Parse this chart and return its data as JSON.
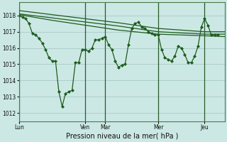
{
  "title": "Pression niveau de la mer( hPa )",
  "bg_color": "#cce8e4",
  "grid_color": "#aacfcb",
  "line_color": "#1e5c1e",
  "ylim": [
    1011.5,
    1018.8
  ],
  "yticks": [
    1012,
    1013,
    1014,
    1015,
    1016,
    1017,
    1018
  ],
  "xtick_labels": [
    "Lun",
    "Ven",
    "Mar",
    "Mer",
    "Jeu"
  ],
  "xtick_positions": [
    0,
    10,
    13,
    21,
    28
  ],
  "vlines": [
    0,
    10,
    13,
    21,
    28
  ],
  "xlim": [
    0,
    31
  ],
  "series1_x": [
    0,
    0.5,
    1,
    1.5,
    2,
    2.5,
    3,
    3.5,
    4,
    4.5,
    5,
    5.5,
    6,
    6.5,
    7,
    7.5,
    8,
    8.5,
    9,
    9.5,
    10,
    10.5,
    11,
    11.5,
    12,
    12.5,
    13,
    13.5,
    14,
    14.5,
    15,
    15.5,
    16,
    16.5,
    17,
    17.5,
    18,
    18.5,
    19,
    19.5,
    20,
    20.5,
    21,
    21.5,
    22,
    22.5,
    23,
    23.5,
    24,
    24.5,
    25,
    25.5,
    26,
    26.5,
    27,
    27.5,
    28,
    28.5,
    29,
    29.5,
    30
  ],
  "series1_y": [
    1018.0,
    1017.9,
    1017.8,
    1017.5,
    1016.9,
    1016.8,
    1016.6,
    1016.3,
    1015.9,
    1015.4,
    1015.2,
    1015.2,
    1013.3,
    1012.4,
    1013.2,
    1013.3,
    1013.4,
    1015.1,
    1015.1,
    1015.9,
    1015.9,
    1015.8,
    1016.0,
    1016.5,
    1016.5,
    1016.6,
    1016.7,
    1016.2,
    1015.9,
    1015.2,
    1014.8,
    1014.95,
    1015.0,
    1016.2,
    1017.2,
    1017.5,
    1017.6,
    1017.3,
    1017.2,
    1017.0,
    1016.9,
    1016.8,
    1016.8,
    1015.9,
    1015.4,
    1015.3,
    1015.2,
    1015.5,
    1016.1,
    1016.0,
    1015.6,
    1015.1,
    1015.1,
    1015.5,
    1016.1,
    1017.3,
    1017.8,
    1017.4,
    1016.8,
    1016.8,
    1016.8
  ],
  "series2_x": [
    0,
    5,
    10,
    15,
    21,
    28,
    31
  ],
  "series2_y": [
    1018.05,
    1017.7,
    1017.4,
    1017.1,
    1016.85,
    1016.75,
    1016.7
  ],
  "series3_x": [
    0,
    5,
    10,
    15,
    21,
    28,
    31
  ],
  "series3_y": [
    1018.1,
    1017.85,
    1017.6,
    1017.35,
    1017.0,
    1016.85,
    1016.85
  ],
  "series4_x": [
    0,
    5,
    10,
    15,
    21,
    28,
    31
  ],
  "series4_y": [
    1018.3,
    1018.05,
    1017.8,
    1017.55,
    1017.2,
    1017.0,
    1017.0
  ]
}
